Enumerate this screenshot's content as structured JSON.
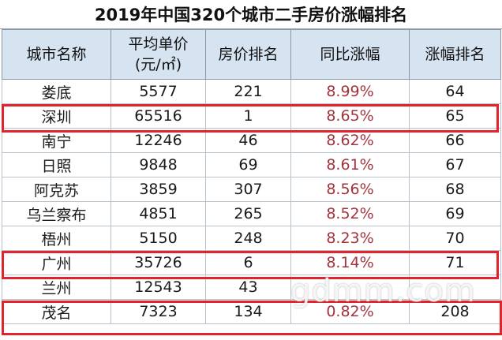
{
  "title": "2019年中国320个城市二手房价涨幅排名",
  "headers": {
    "city": "城市名称",
    "price_line1": "平均单价",
    "price_line2": "(元/㎡)",
    "price_rank": "房价排名",
    "yoy": "同比涨幅",
    "growth_rank": "涨幅排名"
  },
  "rows": [
    {
      "city": "娄底",
      "price": "5577",
      "price_rank": "221",
      "yoy": "8.99%",
      "growth_rank": "64"
    },
    {
      "city": "深圳",
      "price": "65516",
      "price_rank": "1",
      "yoy": "8.65%",
      "growth_rank": "65"
    },
    {
      "city": "南宁",
      "price": "12246",
      "price_rank": "46",
      "yoy": "8.62%",
      "growth_rank": "66"
    },
    {
      "city": "日照",
      "price": "9848",
      "price_rank": "69",
      "yoy": "8.61%",
      "growth_rank": "67"
    },
    {
      "city": "阿克苏",
      "price": "3859",
      "price_rank": "307",
      "yoy": "8.56%",
      "growth_rank": "68"
    },
    {
      "city": "乌兰察布",
      "price": "4851",
      "price_rank": "265",
      "yoy": "8.52%",
      "growth_rank": "69"
    },
    {
      "city": "梧州",
      "price": "5150",
      "price_rank": "248",
      "yoy": "8.23%",
      "growth_rank": "70"
    },
    {
      "city": "广州",
      "price": "35726",
      "price_rank": "6",
      "yoy": "8.14%",
      "growth_rank": "71"
    },
    {
      "city": "兰州",
      "price": "12543",
      "price_rank": "43",
      "yoy": "",
      "growth_rank": ""
    },
    {
      "city": "茂名",
      "price": "7323",
      "price_rank": "134",
      "yoy": "0.82%",
      "growth_rank": "208"
    }
  ],
  "highlighted_cities": [
    "深圳",
    "广州",
    "茂名"
  ],
  "watermark": "gdmm.com",
  "colors": {
    "header_bg": "#d6e3f0",
    "percent_text": "#a3333d",
    "highlight_border": "#e3232b"
  }
}
